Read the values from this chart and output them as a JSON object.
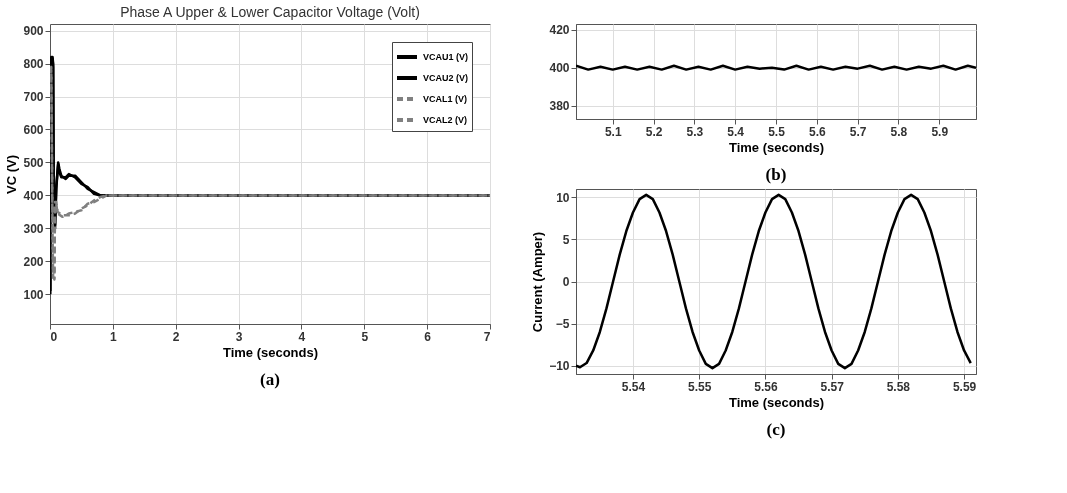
{
  "chart_data": [
    {
      "type": "line",
      "title": "Phase A Upper & Lower Capacitor Voltage (Volt)",
      "xlabel": "Time (seconds)",
      "ylabel": "VC (V)",
      "xlim": [
        0,
        7
      ],
      "xticks": [
        0,
        1,
        2,
        3,
        4,
        5,
        6,
        7
      ],
      "ylim": [
        10,
        920
      ],
      "yticks": [
        100,
        200,
        300,
        400,
        500,
        600,
        700,
        800,
        900
      ],
      "grid": true,
      "legend": "top right",
      "annotations": [
        "(a)"
      ],
      "series": [
        {
          "name": "VCAU1 (V)",
          "color": "#000000",
          "line_style": "solid",
          "x": [
            0.005,
            0.02,
            0.03,
            0.04,
            0.05,
            0.06,
            0.08,
            0.1,
            0.13,
            0.15,
            0.18,
            0.25,
            0.3,
            0.4,
            0.5,
            0.6,
            0.7,
            0.8,
            0.9,
            1.5,
            2,
            3,
            4,
            5,
            6,
            7
          ],
          "values": [
            100,
            820,
            790,
            820,
            800,
            350,
            300,
            420,
            500,
            480,
            460,
            450,
            460,
            460,
            440,
            420,
            410,
            400,
            400,
            400,
            400,
            400,
            400,
            400,
            400,
            400
          ]
        },
        {
          "name": "VCAU2 (V)",
          "color": "#000000",
          "line_style": "solid",
          "x": [
            0.005,
            0.02,
            0.03,
            0.04,
            0.05,
            0.06,
            0.08,
            0.1,
            0.13,
            0.15,
            0.18,
            0.25,
            0.3,
            0.4,
            0.5,
            0.6,
            0.7,
            0.8,
            0.9,
            1.5,
            2,
            3,
            4,
            5,
            6,
            7
          ],
          "values": [
            110,
            810,
            800,
            815,
            790,
            360,
            310,
            430,
            495,
            470,
            455,
            455,
            465,
            455,
            435,
            425,
            405,
            400,
            400,
            400,
            400,
            400,
            400,
            400,
            400,
            400
          ]
        },
        {
          "name": "VCAL1 (V)",
          "color": "#808080",
          "line_style": "dashed",
          "x": [
            0.005,
            0.02,
            0.04,
            0.05,
            0.07,
            0.08,
            0.1,
            0.12,
            0.2,
            0.3,
            0.4,
            0.5,
            0.6,
            0.7,
            0.8,
            0.9,
            1.5,
            2,
            3,
            4,
            5,
            6,
            7
          ],
          "values": [
            780,
            790,
            300,
            150,
            150,
            380,
            380,
            350,
            340,
            340,
            345,
            360,
            370,
            385,
            395,
            400,
            400,
            400,
            400,
            400,
            400,
            400,
            400
          ]
        },
        {
          "name": "VCAL2 (V)",
          "color": "#808080",
          "line_style": "dashed",
          "x": [
            0.005,
            0.02,
            0.04,
            0.05,
            0.07,
            0.08,
            0.1,
            0.12,
            0.2,
            0.3,
            0.4,
            0.5,
            0.6,
            0.7,
            0.8,
            0.9,
            1.5,
            2,
            3,
            4,
            5,
            6,
            7
          ],
          "values": [
            770,
            780,
            310,
            160,
            145,
            370,
            375,
            345,
            335,
            345,
            350,
            355,
            375,
            380,
            390,
            400,
            400,
            400,
            400,
            400,
            400,
            400,
            400
          ]
        }
      ]
    },
    {
      "type": "line",
      "xlabel": "Time (seconds)",
      "xlim": [
        5.01,
        5.99
      ],
      "xticks": [
        5.1,
        5.2,
        5.3,
        5.4,
        5.5,
        5.6,
        5.7,
        5.8,
        5.9
      ],
      "ylim": [
        373,
        423
      ],
      "yticks": [
        380,
        400,
        420
      ],
      "grid": true,
      "annotations": [
        "(b)"
      ],
      "series": [
        {
          "color": "#000000",
          "line_style": "solid",
          "x": [
            5.01,
            5.04,
            5.07,
            5.1,
            5.13,
            5.16,
            5.19,
            5.22,
            5.25,
            5.28,
            5.31,
            5.34,
            5.37,
            5.4,
            5.43,
            5.46,
            5.49,
            5.52,
            5.55,
            5.58,
            5.61,
            5.64,
            5.67,
            5.7,
            5.73,
            5.76,
            5.79,
            5.82,
            5.85,
            5.88,
            5.91,
            5.94,
            5.97,
            5.99
          ],
          "values": [
            401,
            399,
            400.5,
            399,
            400.5,
            399,
            400.5,
            399,
            401,
            399,
            400.5,
            399,
            401,
            399,
            400.5,
            399.5,
            400,
            399,
            401,
            399,
            400.5,
            399,
            400.5,
            399.5,
            401,
            399,
            400.5,
            399,
            400.5,
            399.5,
            401,
            399,
            401,
            400
          ]
        }
      ]
    },
    {
      "type": "line",
      "xlabel": "Time (seconds)",
      "ylabel": "Current (Amper)",
      "xlim": [
        5.5314,
        5.5918
      ],
      "xticks": [
        5.54,
        5.55,
        5.56,
        5.57,
        5.58,
        5.59
      ],
      "ylim": [
        -11,
        11
      ],
      "yticks": [
        -10,
        -5,
        0,
        5,
        10
      ],
      "grid": true,
      "annotations": [
        "(c)"
      ],
      "series": [
        {
          "color": "#000000",
          "line_style": "solid",
          "x": [
            5.5314,
            5.532,
            5.533,
            5.534,
            5.535,
            5.536,
            5.537,
            5.538,
            5.539,
            5.54,
            5.541,
            5.542,
            5.543,
            5.544,
            5.545,
            5.546,
            5.547,
            5.548,
            5.549,
            5.55,
            5.551,
            5.552,
            5.553,
            5.554,
            5.555,
            5.556,
            5.557,
            5.558,
            5.559,
            5.56,
            5.561,
            5.562,
            5.563,
            5.564,
            5.565,
            5.566,
            5.567,
            5.568,
            5.569,
            5.57,
            5.571,
            5.572,
            5.573,
            5.574,
            5.575,
            5.576,
            5.577,
            5.578,
            5.579,
            5.58,
            5.581,
            5.582,
            5.583,
            5.584,
            5.585,
            5.586,
            5.587,
            5.588,
            5.589,
            5.59,
            5.591
          ],
          "values": [
            -10,
            -10.2,
            -9.7,
            -8.2,
            -6,
            -3.2,
            0,
            3.2,
            6,
            8.2,
            9.8,
            10.3,
            9.8,
            8.2,
            6,
            3.2,
            0,
            -3.2,
            -6,
            -8.2,
            -9.8,
            -10.3,
            -9.8,
            -8.2,
            -6,
            -3.2,
            0,
            3.2,
            6,
            8.2,
            9.8,
            10.3,
            9.8,
            8.2,
            6,
            3.2,
            0,
            -3.2,
            -6,
            -8.2,
            -9.8,
            -10.3,
            -9.8,
            -8.2,
            -6,
            -3.2,
            0,
            3.2,
            6,
            8.2,
            9.8,
            10.3,
            9.8,
            8.2,
            6,
            3.2,
            0,
            -3.2,
            -6,
            -8.2,
            -9.7
          ]
        }
      ]
    }
  ]
}
